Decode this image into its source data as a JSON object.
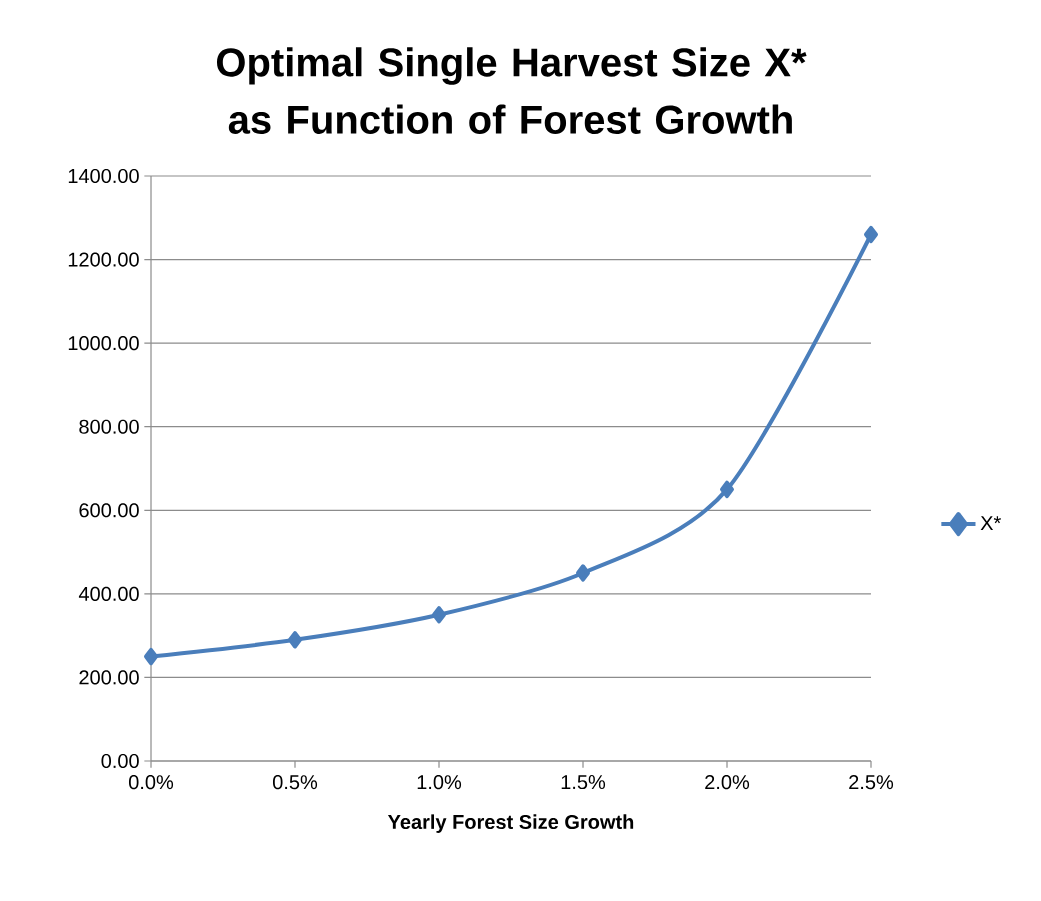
{
  "chart_data": {
    "type": "line",
    "title": "Optimal Single Harvest Size X* as Function of Forest Growth",
    "xlabel": "Yearly Forest Size Growth",
    "categories": [
      "0.0%",
      "0.5%",
      "1.0%",
      "1.5%",
      "2.0%",
      "2.5%"
    ],
    "series": [
      {
        "name": "X*",
        "color": "#4a7ebb",
        "values": [
          250,
          290,
          350,
          450,
          650,
          1260
        ]
      }
    ],
    "ylim": [
      0,
      1400
    ],
    "yticks": [
      {
        "value": 0,
        "label": "0.00"
      },
      {
        "value": 200,
        "label": "200.00"
      },
      {
        "value": 400,
        "label": "400.00"
      },
      {
        "value": 600,
        "label": "600.00"
      },
      {
        "value": 800,
        "label": "800.00"
      },
      {
        "value": 1000,
        "label": "1000.00"
      },
      {
        "value": 1200,
        "label": "1200.00"
      },
      {
        "value": 1400,
        "label": "1400.00"
      }
    ],
    "grid": "y",
    "legend": "right",
    "marker": "diamond",
    "line_style": "solid"
  }
}
